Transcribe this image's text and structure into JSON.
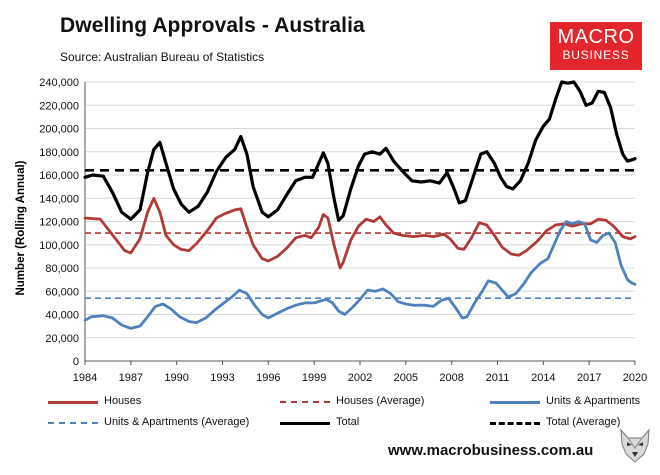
{
  "header": {
    "title": "Dwelling Approvals - Australia",
    "source": "Source: Australian Bureau of Statistics",
    "logo_line1": "MACRO",
    "logo_line2": "BUSINESS"
  },
  "footer": {
    "url": "www.macrobusiness.com.au"
  },
  "colors": {
    "total": "#000000",
    "houses": "#b03a37",
    "units": "#4f81bd"
  },
  "chart_data": {
    "type": "line",
    "title": "Dwelling Approvals - Australia",
    "xlabel": "",
    "ylabel": "Number (Rolling Annual)",
    "xlim": [
      1984,
      2020
    ],
    "ylim": [
      0,
      240000
    ],
    "xticks": [
      1984,
      1987,
      1990,
      1993,
      1996,
      1999,
      2002,
      2005,
      2008,
      2011,
      2014,
      2017,
      2020
    ],
    "xtick_labels": [
      "1984",
      "1987",
      "1990",
      "1993",
      "1996",
      "1999",
      "2002",
      "2005",
      "2008",
      "2011",
      "2014",
      "2017",
      "2020"
    ],
    "yticks": [
      0,
      20000,
      40000,
      60000,
      80000,
      100000,
      120000,
      140000,
      160000,
      180000,
      200000,
      220000,
      240000
    ],
    "ytick_labels": [
      "0",
      "20,000",
      "40,000",
      "60,000",
      "80,000",
      "100,000",
      "120,000",
      "140,000",
      "160,000",
      "180,000",
      "200,000",
      "220,000",
      "240,000"
    ],
    "legend_position": "bottom",
    "series": [
      {
        "name": "Houses",
        "style": "solid",
        "color": "#b03a37",
        "points": [
          [
            1984,
            123000
          ],
          [
            1985,
            122000
          ],
          [
            1986,
            105000
          ],
          [
            1986.6,
            95000
          ],
          [
            1987,
            93000
          ],
          [
            1987.6,
            105000
          ],
          [
            1988.1,
            128000
          ],
          [
            1988.5,
            140000
          ],
          [
            1988.9,
            128000
          ],
          [
            1989.3,
            108000
          ],
          [
            1989.8,
            100000
          ],
          [
            1990.3,
            96000
          ],
          [
            1990.8,
            95000
          ],
          [
            1991.3,
            101000
          ],
          [
            1992,
            112000
          ],
          [
            1992.6,
            123000
          ],
          [
            1993.2,
            127000
          ],
          [
            1993.8,
            130000
          ],
          [
            1994.2,
            131000
          ],
          [
            1994.6,
            115000
          ],
          [
            1995,
            100000
          ],
          [
            1995.6,
            88000
          ],
          [
            1996,
            86000
          ],
          [
            1996.6,
            90000
          ],
          [
            1997.2,
            97000
          ],
          [
            1997.8,
            106000
          ],
          [
            1998.4,
            108000
          ],
          [
            1998.8,
            106000
          ],
          [
            1999.3,
            115000
          ],
          [
            1999.6,
            126000
          ],
          [
            1999.9,
            123000
          ],
          [
            2000.3,
            100000
          ],
          [
            2000.7,
            80000
          ],
          [
            2000.9,
            85000
          ],
          [
            2001.4,
            104000
          ],
          [
            2001.9,
            116000
          ],
          [
            2002.4,
            122000
          ],
          [
            2002.9,
            120000
          ],
          [
            2003.3,
            124000
          ],
          [
            2003.7,
            117000
          ],
          [
            2004.2,
            110000
          ],
          [
            2004.8,
            108000
          ],
          [
            2005.5,
            107000
          ],
          [
            2006.2,
            108000
          ],
          [
            2006.8,
            107000
          ],
          [
            2007.5,
            109000
          ],
          [
            2007.9,
            105000
          ],
          [
            2008.4,
            97000
          ],
          [
            2008.8,
            96000
          ],
          [
            2009.3,
            106000
          ],
          [
            2009.8,
            119000
          ],
          [
            2010.3,
            117000
          ],
          [
            2010.8,
            108000
          ],
          [
            2011.3,
            98000
          ],
          [
            2011.9,
            92000
          ],
          [
            2012.4,
            91000
          ],
          [
            2012.9,
            95000
          ],
          [
            2013.6,
            103000
          ],
          [
            2014.2,
            112000
          ],
          [
            2014.8,
            117000
          ],
          [
            2015.4,
            118000
          ],
          [
            2015.9,
            116000
          ],
          [
            2016.5,
            118000
          ],
          [
            2017.1,
            118000
          ],
          [
            2017.6,
            122000
          ],
          [
            2018.1,
            121000
          ],
          [
            2018.6,
            116000
          ],
          [
            2019.2,
            107000
          ],
          [
            2019.7,
            105000
          ],
          [
            2020,
            107000
          ]
        ]
      },
      {
        "name": "Houses (Average)",
        "style": "dashed",
        "color": "#b03a37",
        "points": [
          [
            1984,
            110000
          ],
          [
            2020,
            110000
          ]
        ]
      },
      {
        "name": "Units & Apartments",
        "style": "solid",
        "color": "#4f81bd",
        "points": [
          [
            1984,
            35000
          ],
          [
            1984.4,
            38000
          ],
          [
            1985.2,
            39000
          ],
          [
            1985.8,
            37000
          ],
          [
            1986.4,
            31000
          ],
          [
            1987,
            28000
          ],
          [
            1987.6,
            30000
          ],
          [
            1988.1,
            38000
          ],
          [
            1988.6,
            47000
          ],
          [
            1989.1,
            49000
          ],
          [
            1989.6,
            45000
          ],
          [
            1990.2,
            38000
          ],
          [
            1990.8,
            34000
          ],
          [
            1991.3,
            33000
          ],
          [
            1991.9,
            37000
          ],
          [
            1992.5,
            44000
          ],
          [
            1993.1,
            50000
          ],
          [
            1993.6,
            55000
          ],
          [
            1994.1,
            61000
          ],
          [
            1994.6,
            58000
          ],
          [
            1995.1,
            48000
          ],
          [
            1995.6,
            40000
          ],
          [
            1996,
            37000
          ],
          [
            1996.6,
            41000
          ],
          [
            1997.2,
            45000
          ],
          [
            1997.8,
            48000
          ],
          [
            1998.4,
            50000
          ],
          [
            1999,
            50000
          ],
          [
            1999.5,
            52000
          ],
          [
            1999.8,
            53000
          ],
          [
            2000.2,
            50000
          ],
          [
            2000.6,
            43000
          ],
          [
            2001,
            40000
          ],
          [
            2001.5,
            46000
          ],
          [
            2002,
            53000
          ],
          [
            2002.5,
            61000
          ],
          [
            2003,
            60000
          ],
          [
            2003.5,
            62000
          ],
          [
            2004,
            58000
          ],
          [
            2004.5,
            51000
          ],
          [
            2005,
            49000
          ],
          [
            2005.5,
            48000
          ],
          [
            2006.2,
            48000
          ],
          [
            2006.8,
            47000
          ],
          [
            2007.3,
            52000
          ],
          [
            2007.8,
            54000
          ],
          [
            2008.3,
            45000
          ],
          [
            2008.7,
            37000
          ],
          [
            2009,
            38000
          ],
          [
            2009.5,
            50000
          ],
          [
            2010,
            60000
          ],
          [
            2010.4,
            69000
          ],
          [
            2010.9,
            67000
          ],
          [
            2011.3,
            61000
          ],
          [
            2011.7,
            55000
          ],
          [
            2012.2,
            58000
          ],
          [
            2012.7,
            66000
          ],
          [
            2013.2,
            76000
          ],
          [
            2013.8,
            84000
          ],
          [
            2014.3,
            88000
          ],
          [
            2014.7,
            100000
          ],
          [
            2015.1,
            112000
          ],
          [
            2015.5,
            120000
          ],
          [
            2015.9,
            118000
          ],
          [
            2016.3,
            120000
          ],
          [
            2016.7,
            118000
          ],
          [
            2017.1,
            104000
          ],
          [
            2017.5,
            102000
          ],
          [
            2017.9,
            108000
          ],
          [
            2018.3,
            110000
          ],
          [
            2018.7,
            102000
          ],
          [
            2019.1,
            82000
          ],
          [
            2019.5,
            70000
          ],
          [
            2019.8,
            67000
          ],
          [
            2020,
            66000
          ]
        ]
      },
      {
        "name": "Units & Apartments (Average)",
        "style": "dashed",
        "color": "#4f81bd",
        "points": [
          [
            1984,
            54000
          ],
          [
            2020,
            54000
          ]
        ]
      },
      {
        "name": "Total",
        "style": "solid",
        "color": "#000000",
        "points": [
          [
            1984,
            158000
          ],
          [
            1984.5,
            160000
          ],
          [
            1985.2,
            159000
          ],
          [
            1985.8,
            145000
          ],
          [
            1986.4,
            128000
          ],
          [
            1987,
            122000
          ],
          [
            1987.6,
            130000
          ],
          [
            1988.1,
            162000
          ],
          [
            1988.5,
            182000
          ],
          [
            1988.9,
            188000
          ],
          [
            1989.3,
            170000
          ],
          [
            1989.8,
            148000
          ],
          [
            1990.3,
            135000
          ],
          [
            1990.8,
            128000
          ],
          [
            1991.4,
            133000
          ],
          [
            1992,
            145000
          ],
          [
            1992.6,
            163000
          ],
          [
            1993.2,
            175000
          ],
          [
            1993.8,
            182000
          ],
          [
            1994.2,
            193000
          ],
          [
            1994.6,
            178000
          ],
          [
            1995,
            150000
          ],
          [
            1995.6,
            128000
          ],
          [
            1996,
            124000
          ],
          [
            1996.6,
            130000
          ],
          [
            1997.2,
            143000
          ],
          [
            1997.8,
            155000
          ],
          [
            1998.4,
            158000
          ],
          [
            1998.9,
            158000
          ],
          [
            1999.3,
            170000
          ],
          [
            1999.6,
            179000
          ],
          [
            1999.9,
            170000
          ],
          [
            2000.3,
            140000
          ],
          [
            2000.6,
            121000
          ],
          [
            2000.9,
            125000
          ],
          [
            2001.4,
            148000
          ],
          [
            2001.9,
            168000
          ],
          [
            2002.3,
            178000
          ],
          [
            2002.8,
            180000
          ],
          [
            2003.3,
            178000
          ],
          [
            2003.7,
            183000
          ],
          [
            2004.2,
            172000
          ],
          [
            2004.8,
            163000
          ],
          [
            2005.4,
            155000
          ],
          [
            2006,
            154000
          ],
          [
            2006.6,
            155000
          ],
          [
            2007.2,
            153000
          ],
          [
            2007.7,
            162000
          ],
          [
            2008.1,
            150000
          ],
          [
            2008.5,
            136000
          ],
          [
            2008.9,
            138000
          ],
          [
            2009.4,
            158000
          ],
          [
            2009.9,
            178000
          ],
          [
            2010.3,
            180000
          ],
          [
            2010.8,
            170000
          ],
          [
            2011.2,
            158000
          ],
          [
            2011.6,
            150000
          ],
          [
            2012,
            148000
          ],
          [
            2012.5,
            155000
          ],
          [
            2013,
            170000
          ],
          [
            2013.5,
            190000
          ],
          [
            2014,
            202000
          ],
          [
            2014.4,
            208000
          ],
          [
            2014.8,
            225000
          ],
          [
            2015.2,
            240000
          ],
          [
            2015.6,
            239000
          ],
          [
            2016,
            240000
          ],
          [
            2016.4,
            232000
          ],
          [
            2016.8,
            220000
          ],
          [
            2017.2,
            222000
          ],
          [
            2017.6,
            232000
          ],
          [
            2018,
            231000
          ],
          [
            2018.4,
            218000
          ],
          [
            2018.8,
            195000
          ],
          [
            2019.2,
            178000
          ],
          [
            2019.5,
            172000
          ],
          [
            2019.8,
            173000
          ],
          [
            2020,
            174000
          ]
        ]
      },
      {
        "name": "Total (Average)",
        "style": "dashed",
        "color": "#000000",
        "points": [
          [
            1984,
            164000
          ],
          [
            2020,
            164000
          ]
        ]
      }
    ],
    "legend": [
      {
        "label": "Houses",
        "style": "solid",
        "color": "#b03a37"
      },
      {
        "label": "Houses (Average)",
        "style": "dashed",
        "color": "#b03a37"
      },
      {
        "label": "Units & Apartments",
        "style": "solid",
        "color": "#4f81bd"
      },
      {
        "label": "Units & Apartments (Average)",
        "style": "dashed",
        "color": "#4f81bd"
      },
      {
        "label": "Total",
        "style": "solid",
        "color": "#000000"
      },
      {
        "label": "Total (Average)",
        "style": "dashed",
        "color": "#000000"
      }
    ]
  }
}
